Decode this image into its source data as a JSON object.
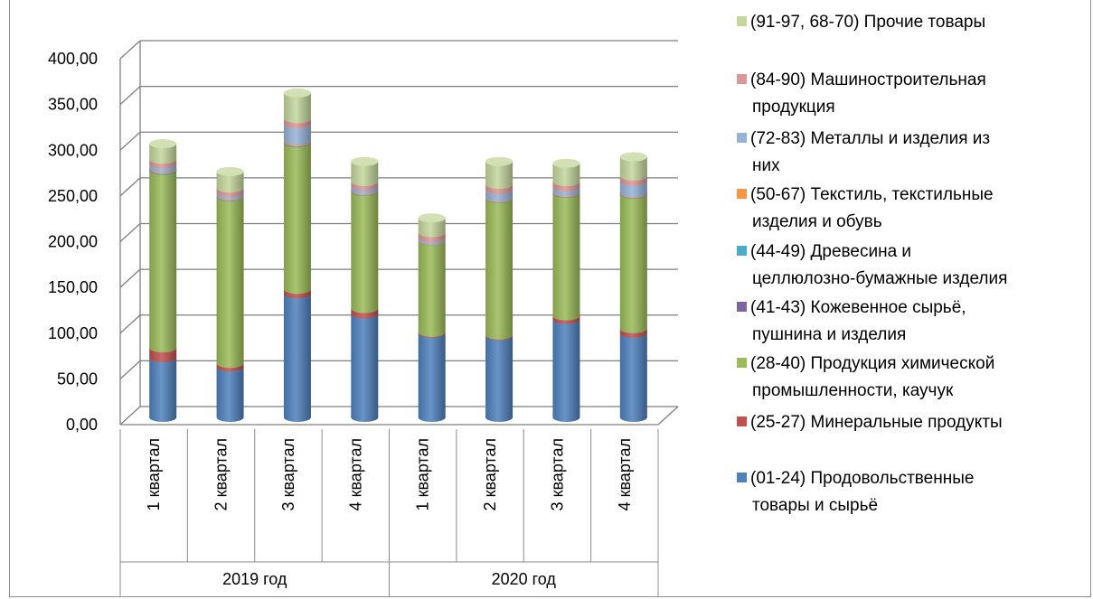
{
  "chart_data": {
    "type": "bar",
    "stacked": true,
    "three_d": true,
    "title": "",
    "xlabel": "",
    "ylabel": "",
    "ylim": [
      0,
      400
    ],
    "y_ticks": [
      "0,00",
      "50,00",
      "100,00",
      "150,00",
      "200,00",
      "250,00",
      "300,00",
      "350,00",
      "400,00"
    ],
    "grid": true,
    "legend_position": "right",
    "categories": [
      "1 квартал",
      "2 квартал",
      "3 квартал",
      "4 квартал",
      "1 квартал",
      "2 квартал",
      "3 квартал",
      "4 квартал"
    ],
    "groups": [
      {
        "label": "2019 год",
        "count": 4
      },
      {
        "label": "2020 год",
        "count": 4
      }
    ],
    "series": [
      {
        "name": "(01-24)  Продовольственные товары и сырьё",
        "color": "#4f81bd",
        "values": [
          65,
          55,
          135,
          113,
          92,
          89,
          107,
          92
        ]
      },
      {
        "name": "(25-27)  Минеральные продукты",
        "color": "#c0504d",
        "values": [
          11,
          4,
          5,
          6,
          1,
          1,
          4,
          5
        ]
      },
      {
        "name": "(28-40)  Продукция химической промышленности, каучук",
        "color": "#9bbb59",
        "values": [
          194,
          182,
          160,
          128,
          100,
          149,
          134,
          147
        ]
      },
      {
        "name": "(41-43)  Кожевенное сырьё, пушнина и изделия",
        "color": "#8064a2",
        "values": [
          0.5,
          0.3,
          0.5,
          0.3,
          0.2,
          0.3,
          0.3,
          0.3
        ]
      },
      {
        "name": "(44-49)  Древесина и целлюлозно-бумажные изделия",
        "color": "#4bacc6",
        "values": [
          0.7,
          0.5,
          0.7,
          0.5,
          0.3,
          0.5,
          0.5,
          0.6
        ]
      },
      {
        "name": "(50-67)  Текстиль, текстильные изделия и обувь",
        "color": "#f79646",
        "values": [
          1,
          1,
          1.5,
          1,
          0.5,
          1,
          1,
          1
        ]
      },
      {
        "name": "(72-83)  Металлы и изделия из них",
        "color": "#95b3d7",
        "values": [
          5,
          3,
          18,
          4,
          2,
          8,
          5,
          12
        ]
      },
      {
        "name": "(84-90)  Машиностроительная продукция",
        "color": "#d99694",
        "values": [
          5,
          5,
          6,
          5,
          6,
          6,
          6,
          6
        ]
      },
      {
        "name": "(91-97, 68-70)  Прочие товары",
        "color": "#c3d69b",
        "values": [
          17,
          18,
          28,
          22,
          16,
          25,
          20,
          21
        ]
      }
    ],
    "legend": [
      {
        "lines": [
          "(91-97, 68-70)  Прочие товары"
        ],
        "color": "#c3d69b"
      },
      {
        "lines": [
          "(84-90)  Машиностроительная",
          "продукция"
        ],
        "color": "#d99694"
      },
      {
        "lines": [
          "(72-83)  Металлы и изделия из",
          "них"
        ],
        "color": "#95b3d7"
      },
      {
        "lines": [
          "(50-67)  Текстиль, текстильные",
          "изделия и обувь"
        ],
        "color": "#f79646"
      },
      {
        "lines": [
          "(44-49)  Древесина и",
          "целлюлозно-бумажные изделия"
        ],
        "color": "#4bacc6"
      },
      {
        "lines": [
          "(41-43)  Кожевенное сырьё,",
          "пушнина и изделия"
        ],
        "color": "#8064a2"
      },
      {
        "lines": [
          "(28-40)  Продукция химической",
          "промышленности, каучук"
        ],
        "color": "#9bbb59"
      },
      {
        "lines": [
          "(25-27)  Минеральные продукты"
        ],
        "color": "#c0504d"
      },
      {
        "lines": [
          "(01-24)  Продовольственные",
          "товары и сырьё"
        ],
        "color": "#4f81bd"
      }
    ]
  }
}
